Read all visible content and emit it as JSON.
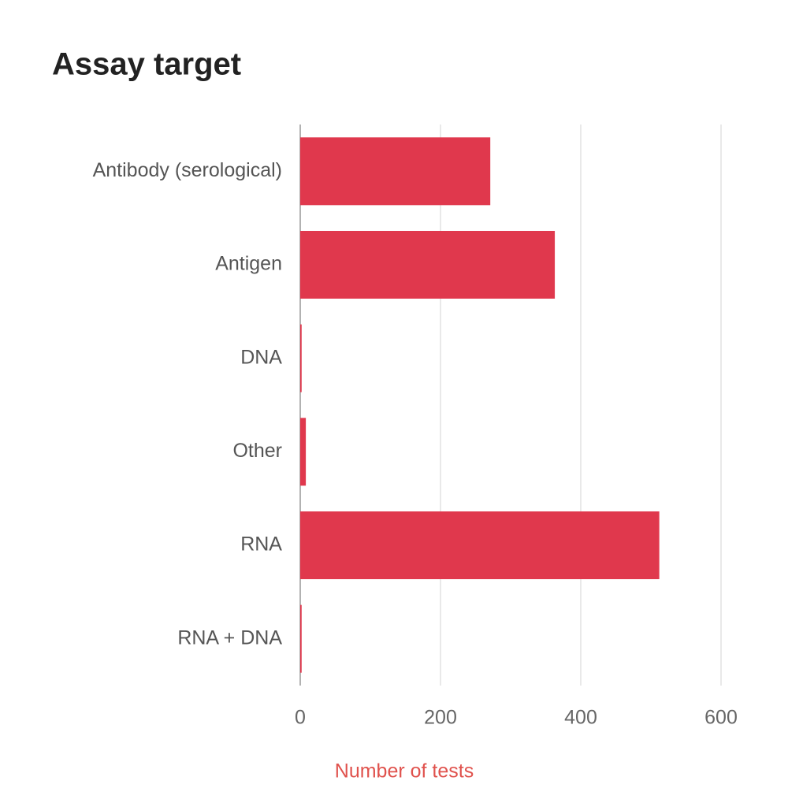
{
  "chart_data": {
    "type": "bar",
    "orientation": "horizontal",
    "title": "Assay target",
    "categories": [
      "Antibody (serological)",
      "Antigen",
      "DNA",
      "Other",
      "RNA",
      "RNA + DNA"
    ],
    "values": [
      271,
      363,
      2,
      8,
      512,
      2
    ],
    "color": "#e0384d",
    "xlim": [
      0,
      600
    ],
    "xticks": [
      0,
      200,
      400,
      600
    ],
    "xlabel": "Number of tests",
    "grid": true
  }
}
